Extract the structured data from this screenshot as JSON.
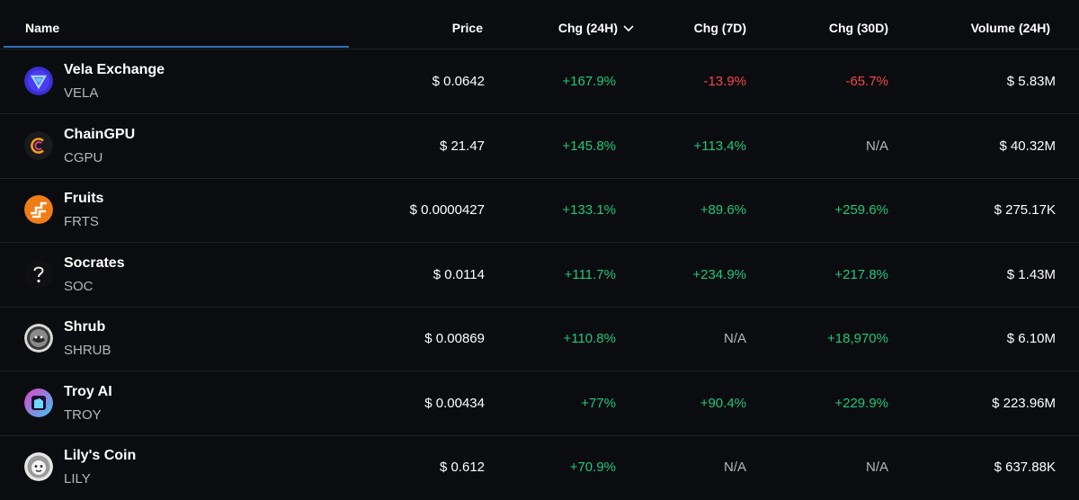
{
  "header": {
    "name": "Name",
    "price": "Price",
    "chg24h": "Chg (24H)",
    "chg7d": "Chg (7D)",
    "chg30d": "Chg (30D)",
    "volume": "Volume (24H)",
    "sort_icon": "chevron-down-icon"
  },
  "colors": {
    "positive": "#1fc77e",
    "negative": "#f2484a",
    "neutral": "#b5b7bd",
    "accent_underline": "#2f6fb7",
    "background": "#0b0c0f"
  },
  "rows": [
    {
      "name": "Vela Exchange",
      "symbol": "VELA",
      "price": "$ 0.0642",
      "chg24h": "+167.9%",
      "chg7d": "-13.9%",
      "chg30d": "-65.7%",
      "volume": "$ 5.83M",
      "icon": "vela-logo-icon"
    },
    {
      "name": "ChainGPU",
      "symbol": "CGPU",
      "price": "$ 21.47",
      "chg24h": "+145.8%",
      "chg7d": "+113.4%",
      "chg30d": "N/A",
      "volume": "$ 40.32M",
      "icon": "chaingpu-logo-icon"
    },
    {
      "name": "Fruits",
      "symbol": "FRTS",
      "price": "$ 0.0000427",
      "chg24h": "+133.1%",
      "chg7d": "+89.6%",
      "chg30d": "+259.6%",
      "volume": "$ 275.17K",
      "icon": "fruits-logo-icon"
    },
    {
      "name": "Socrates",
      "symbol": "SOC",
      "price": "$ 0.0114",
      "chg24h": "+111.7%",
      "chg7d": "+234.9%",
      "chg30d": "+217.8%",
      "volume": "$ 1.43M",
      "icon": "socrates-logo-icon"
    },
    {
      "name": "Shrub",
      "symbol": "SHRUB",
      "price": "$ 0.00869",
      "chg24h": "+110.8%",
      "chg7d": "N/A",
      "chg30d": "+18,970%",
      "volume": "$ 6.10M",
      "icon": "shrub-logo-icon"
    },
    {
      "name": "Troy AI",
      "symbol": "TROY",
      "price": "$ 0.00434",
      "chg24h": "+77%",
      "chg7d": "+90.4%",
      "chg30d": "+229.9%",
      "volume": "$ 223.96M",
      "icon": "troy-logo-icon"
    },
    {
      "name": "Lily's Coin",
      "symbol": "LILY",
      "price": "$ 0.612",
      "chg24h": "+70.9%",
      "chg7d": "N/A",
      "chg30d": "N/A",
      "volume": "$ 637.88K",
      "icon": "lily-logo-icon"
    }
  ]
}
